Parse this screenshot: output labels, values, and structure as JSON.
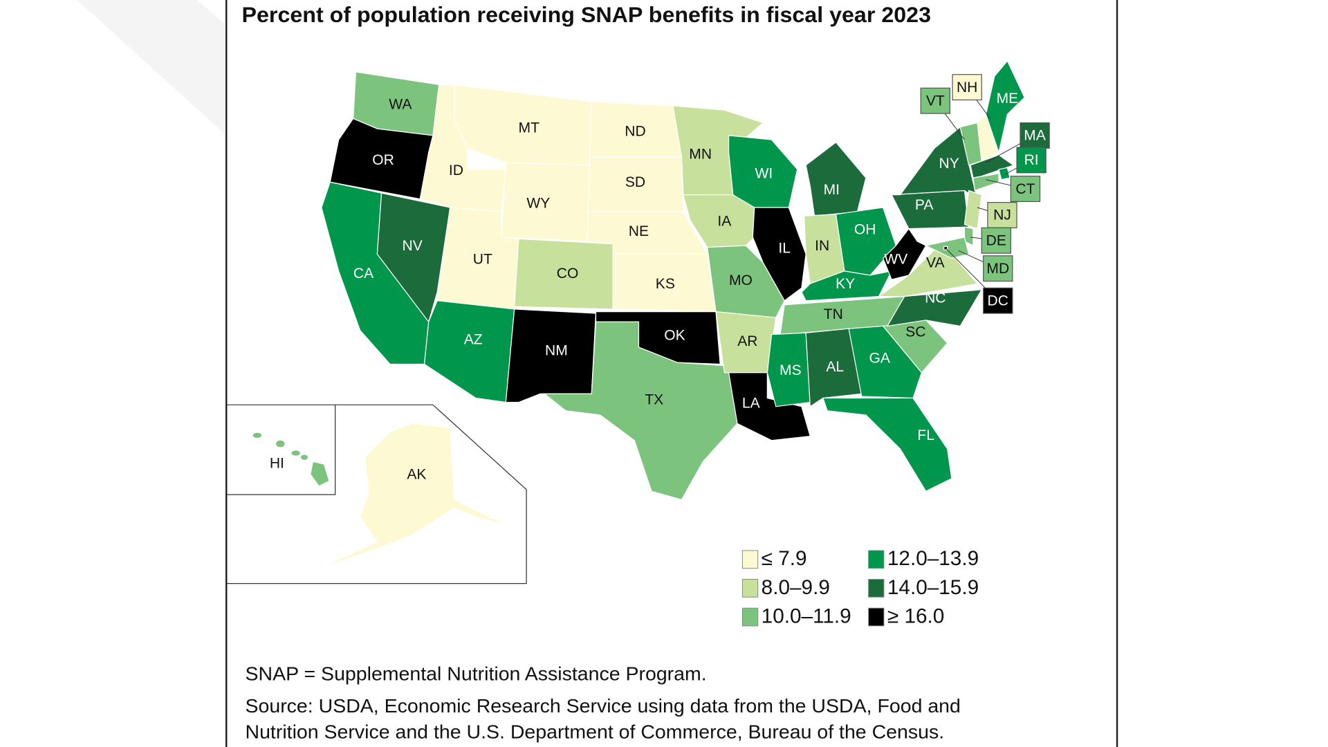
{
  "title": "Percent of population receiving SNAP benefits in fiscal year 2023",
  "legend": [
    {
      "label": "≤ 7.9",
      "color": "#fdf9d2"
    },
    {
      "label": "8.0–9.9",
      "color": "#c7e09c"
    },
    {
      "label": "10.0–11.9",
      "color": "#7cc47d"
    },
    {
      "label": "12.0–13.9",
      "color": "#00964c"
    },
    {
      "label": "14.0–15.9",
      "color": "#1b6b3b"
    },
    {
      "label": "≥ 16.0",
      "color": "#000000"
    }
  ],
  "states": [
    {
      "abbr": "WA",
      "bin": 2
    },
    {
      "abbr": "OR",
      "bin": 5
    },
    {
      "abbr": "CA",
      "bin": 3
    },
    {
      "abbr": "NV",
      "bin": 4
    },
    {
      "abbr": "ID",
      "bin": 0
    },
    {
      "abbr": "MT",
      "bin": 0
    },
    {
      "abbr": "WY",
      "bin": 0
    },
    {
      "abbr": "UT",
      "bin": 0
    },
    {
      "abbr": "CO",
      "bin": 1
    },
    {
      "abbr": "AZ",
      "bin": 3
    },
    {
      "abbr": "NM",
      "bin": 5
    },
    {
      "abbr": "ND",
      "bin": 0
    },
    {
      "abbr": "SD",
      "bin": 0
    },
    {
      "abbr": "NE",
      "bin": 0
    },
    {
      "abbr": "KS",
      "bin": 0
    },
    {
      "abbr": "OK",
      "bin": 5
    },
    {
      "abbr": "TX",
      "bin": 2
    },
    {
      "abbr": "MN",
      "bin": 1
    },
    {
      "abbr": "IA",
      "bin": 1
    },
    {
      "abbr": "MO",
      "bin": 2
    },
    {
      "abbr": "AR",
      "bin": 1
    },
    {
      "abbr": "LA",
      "bin": 5
    },
    {
      "abbr": "WI",
      "bin": 3
    },
    {
      "abbr": "IL",
      "bin": 5
    },
    {
      "abbr": "MI",
      "bin": 4
    },
    {
      "abbr": "IN",
      "bin": 1
    },
    {
      "abbr": "OH",
      "bin": 3
    },
    {
      "abbr": "KY",
      "bin": 3
    },
    {
      "abbr": "TN",
      "bin": 2
    },
    {
      "abbr": "MS",
      "bin": 3
    },
    {
      "abbr": "AL",
      "bin": 4
    },
    {
      "abbr": "GA",
      "bin": 3
    },
    {
      "abbr": "FL",
      "bin": 3
    },
    {
      "abbr": "SC",
      "bin": 2
    },
    {
      "abbr": "NC",
      "bin": 4
    },
    {
      "abbr": "VA",
      "bin": 1
    },
    {
      "abbr": "WV",
      "bin": 5
    },
    {
      "abbr": "PA",
      "bin": 4
    },
    {
      "abbr": "NY",
      "bin": 4
    },
    {
      "abbr": "VT",
      "bin": 2
    },
    {
      "abbr": "NH",
      "bin": 0
    },
    {
      "abbr": "ME",
      "bin": 3
    },
    {
      "abbr": "MA",
      "bin": 4
    },
    {
      "abbr": "RI",
      "bin": 3
    },
    {
      "abbr": "CT",
      "bin": 2
    },
    {
      "abbr": "NJ",
      "bin": 1
    },
    {
      "abbr": "DE",
      "bin": 2
    },
    {
      "abbr": "MD",
      "bin": 2
    },
    {
      "abbr": "DC",
      "bin": 5
    },
    {
      "abbr": "AK",
      "bin": 0
    },
    {
      "abbr": "HI",
      "bin": 2
    }
  ],
  "notes": {
    "abbreviation": "SNAP = Supplemental Nutrition Assistance Program.",
    "source_line1": "Source: USDA, Economic Research Service using data from the USDA, Food and",
    "source_line2": "Nutrition Service and the U.S. Department of Commerce, Bureau of the Census."
  }
}
